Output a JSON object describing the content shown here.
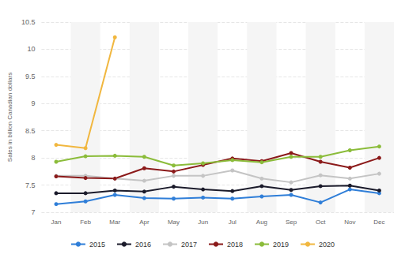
{
  "chart_data": {
    "type": "line",
    "y_label": "Sales in billion Canadian dollars",
    "categories": [
      "Jan",
      "Feb",
      "Mar",
      "Apr",
      "May",
      "Jun",
      "Jul",
      "Aug",
      "Sep",
      "Oct",
      "Nov",
      "Dec"
    ],
    "series": [
      {
        "name": "2015",
        "color": "#2f7ed8",
        "values": [
          7.15,
          7.2,
          7.32,
          7.26,
          7.25,
          7.27,
          7.25,
          7.29,
          7.32,
          7.18,
          7.42,
          7.35
        ]
      },
      {
        "name": "2016",
        "color": "#1b1b2b",
        "values": [
          7.35,
          7.35,
          7.4,
          7.38,
          7.47,
          7.42,
          7.39,
          7.48,
          7.41,
          7.48,
          7.49,
          7.4
        ]
      },
      {
        "name": "2017",
        "color": "#c4c4c4",
        "values": [
          7.67,
          7.67,
          7.62,
          7.58,
          7.67,
          7.67,
          7.77,
          7.62,
          7.55,
          7.68,
          7.62,
          7.71
        ]
      },
      {
        "name": "2018",
        "color": "#8b1a1a",
        "values": [
          7.66,
          7.63,
          7.62,
          7.81,
          7.75,
          7.87,
          7.99,
          7.94,
          8.09,
          7.93,
          7.82,
          8.0
        ]
      },
      {
        "name": "2019",
        "color": "#8bbc3a",
        "values": [
          7.93,
          8.03,
          8.04,
          8.02,
          7.86,
          7.9,
          7.96,
          7.92,
          8.02,
          8.02,
          8.14,
          8.21
        ]
      },
      {
        "name": "2020",
        "color": "#f1b73f",
        "values": [
          8.24,
          8.18,
          10.22,
          null,
          null,
          null,
          null,
          null,
          null,
          null,
          null,
          null
        ]
      }
    ],
    "ylim": [
      7,
      10.5
    ],
    "yticks": [
      7,
      7.5,
      8,
      8.5,
      9,
      9.5,
      10,
      10.5
    ],
    "grid": true,
    "legend": "bottom",
    "marker": "circle"
  }
}
